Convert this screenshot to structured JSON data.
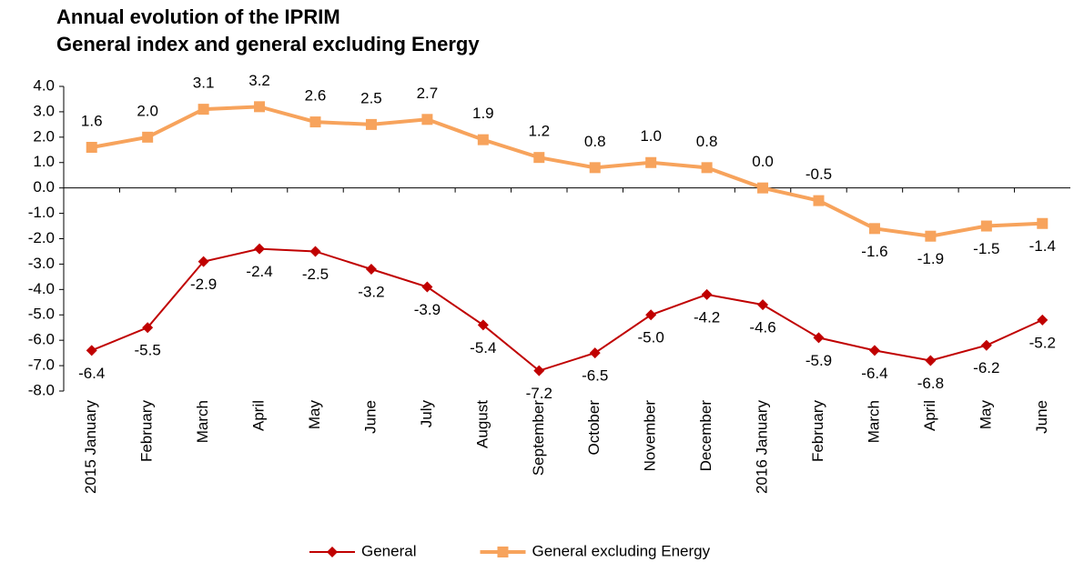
{
  "chart_data": {
    "type": "line",
    "title": [
      "Annual evolution of the IPRIM",
      "General index and general excluding Energy"
    ],
    "categories": [
      "2015 January",
      "February",
      "March",
      "April",
      "May",
      "June",
      "July",
      "August",
      "September",
      "October",
      "November",
      "December",
      "2016 January",
      "February",
      "March",
      "April",
      "May",
      "June"
    ],
    "series": [
      {
        "name": "General",
        "color": "#c00000",
        "marker": "diamond",
        "values": [
          -6.4,
          -5.5,
          -2.9,
          -2.4,
          -2.5,
          -3.2,
          -3.9,
          -5.4,
          -7.2,
          -6.5,
          -5.0,
          -4.2,
          -4.6,
          -5.9,
          -6.4,
          -6.8,
          -6.2,
          -5.2
        ],
        "value_labels": [
          "-6.4",
          "-5.5",
          "-2.9",
          "-2.4",
          "-2.5",
          "-3.2",
          "-3.9",
          "-5.4",
          "-7.2",
          "-6.5",
          "-5.0",
          "-4.2",
          "-4.6",
          "-5.9",
          "-6.4",
          "-6.8",
          "-6.2",
          "-5.2"
        ]
      },
      {
        "name": "General excluding Energy",
        "color": "#f7a35c",
        "marker": "square",
        "values": [
          1.6,
          2.0,
          3.1,
          3.2,
          2.6,
          2.5,
          2.7,
          1.9,
          1.2,
          0.8,
          1.0,
          0.8,
          0.0,
          -0.5,
          -1.6,
          -1.9,
          -1.5,
          -1.4
        ],
        "value_labels": [
          "1.6",
          "2.0",
          "3.1",
          "3.2",
          "2.6",
          "2.5",
          "2.7",
          "1.9",
          "1.2",
          "0.8",
          "1.0",
          "0.8",
          "0.0",
          "-0.5",
          "-1.6",
          "-1.9",
          "-1.5",
          "-1.4"
        ]
      }
    ],
    "ylim": [
      -8,
      4
    ],
    "yticks": [
      {
        "value": -8,
        "label": "-8.0"
      },
      {
        "value": -7,
        "label": "-7.0"
      },
      {
        "value": -6,
        "label": "-6.0"
      },
      {
        "value": -5,
        "label": "-5.0"
      },
      {
        "value": -4,
        "label": "-4.0"
      },
      {
        "value": -3,
        "label": "-3.0"
      },
      {
        "value": -2,
        "label": "-2.0"
      },
      {
        "value": -1,
        "label": "-1.0"
      },
      {
        "value": 0,
        "label": "0.0"
      },
      {
        "value": 1,
        "label": "1.0"
      },
      {
        "value": 2,
        "label": "2.0"
      },
      {
        "value": 3,
        "label": "3.0"
      },
      {
        "value": 4,
        "label": "4.0"
      }
    ],
    "legend": "bottom"
  }
}
